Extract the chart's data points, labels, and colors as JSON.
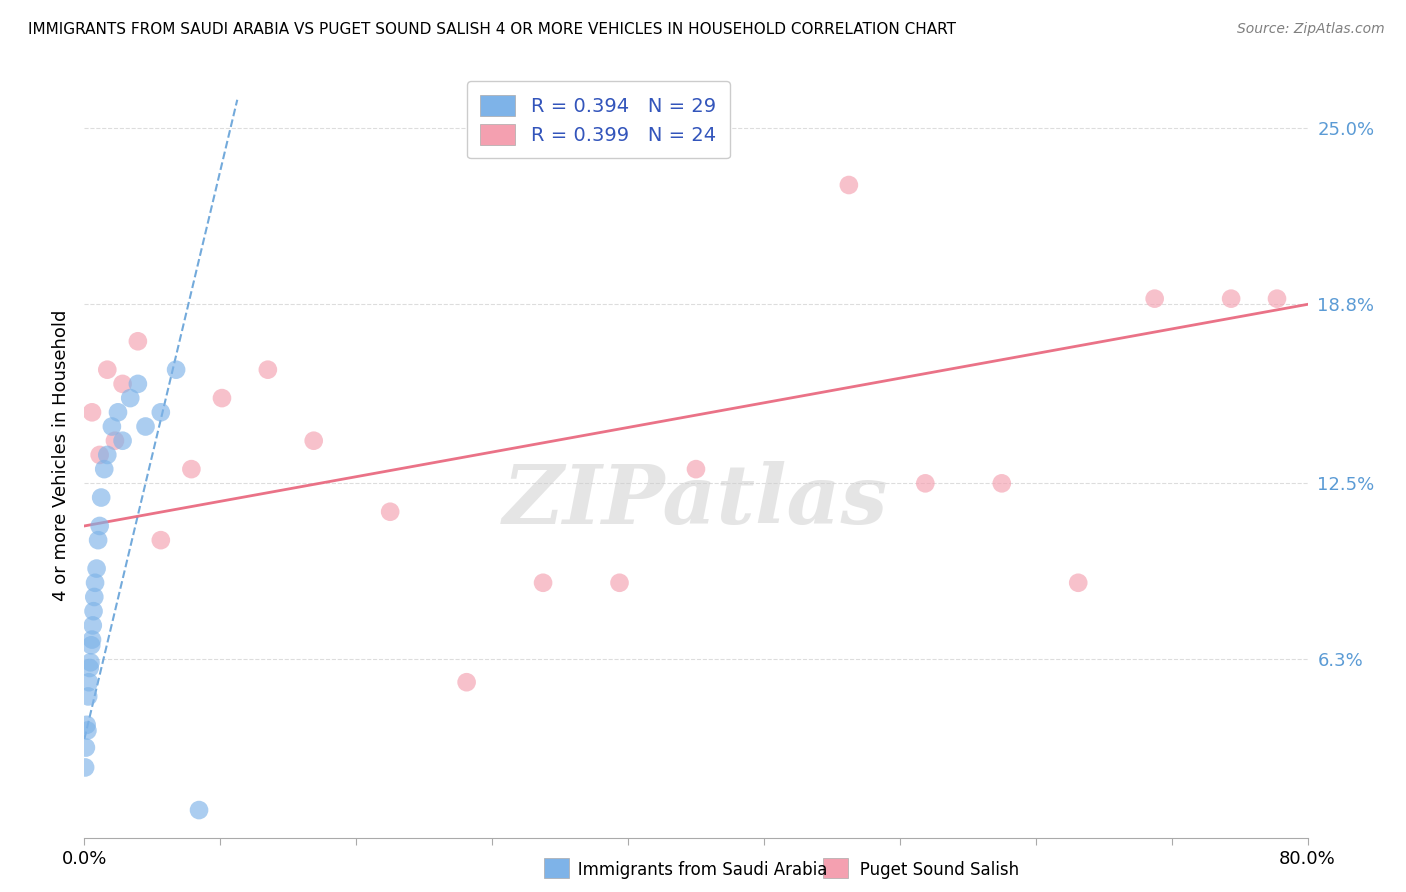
{
  "title": "IMMIGRANTS FROM SAUDI ARABIA VS PUGET SOUND SALISH 4 OR MORE VEHICLES IN HOUSEHOLD CORRELATION CHART",
  "source": "Source: ZipAtlas.com",
  "ylabel": "4 or more Vehicles in Household",
  "xlim": [
    0.0,
    80.0
  ],
  "ylim": [
    0.0,
    27.0
  ],
  "ytick_values": [
    6.3,
    12.5,
    18.8,
    25.0
  ],
  "series1_label": "Immigrants from Saudi Arabia",
  "series2_label": "Puget Sound Salish",
  "color1": "#7EB3E8",
  "color2": "#F4A0B0",
  "trendline1_color": "#5B9BD5",
  "trendline2_color": "#E8637A",
  "watermark": "ZIPatlas",
  "background_color": "#FFFFFF",
  "grid_color": "#DDDDDD",
  "blue_points_x": [
    0.05,
    0.1,
    0.15,
    0.2,
    0.25,
    0.3,
    0.35,
    0.4,
    0.45,
    0.5,
    0.55,
    0.6,
    0.65,
    0.7,
    0.8,
    0.9,
    1.0,
    1.1,
    1.3,
    1.5,
    1.8,
    2.2,
    2.5,
    3.0,
    3.5,
    4.0,
    5.0,
    6.0,
    7.5
  ],
  "blue_points_y": [
    2.5,
    3.2,
    4.0,
    3.8,
    5.0,
    5.5,
    6.0,
    6.2,
    6.8,
    7.0,
    7.5,
    8.0,
    8.5,
    9.0,
    9.5,
    10.5,
    11.0,
    12.0,
    13.0,
    13.5,
    14.5,
    15.0,
    14.0,
    15.5,
    16.0,
    14.5,
    15.0,
    16.5,
    1.0
  ],
  "pink_points_x": [
    0.5,
    1.0,
    1.5,
    2.0,
    2.5,
    3.5,
    5.0,
    7.0,
    9.0,
    12.0,
    15.0,
    20.0,
    25.0,
    30.0,
    35.0,
    40.0,
    50.0,
    55.0,
    60.0,
    65.0,
    70.0,
    75.0,
    78.0
  ],
  "pink_points_y": [
    15.0,
    13.5,
    16.5,
    14.0,
    16.0,
    17.5,
    10.5,
    13.0,
    15.5,
    16.5,
    14.0,
    11.5,
    5.5,
    9.0,
    9.0,
    13.0,
    23.0,
    12.5,
    12.5,
    9.0,
    19.0,
    19.0,
    19.0
  ],
  "blue_trend_x0": 0.0,
  "blue_trend_y0": 3.5,
  "blue_trend_x1": 10.0,
  "blue_trend_y1": 26.0,
  "pink_trend_x0": 0.0,
  "pink_trend_y0": 11.0,
  "pink_trend_x1": 80.0,
  "pink_trend_y1": 18.8
}
